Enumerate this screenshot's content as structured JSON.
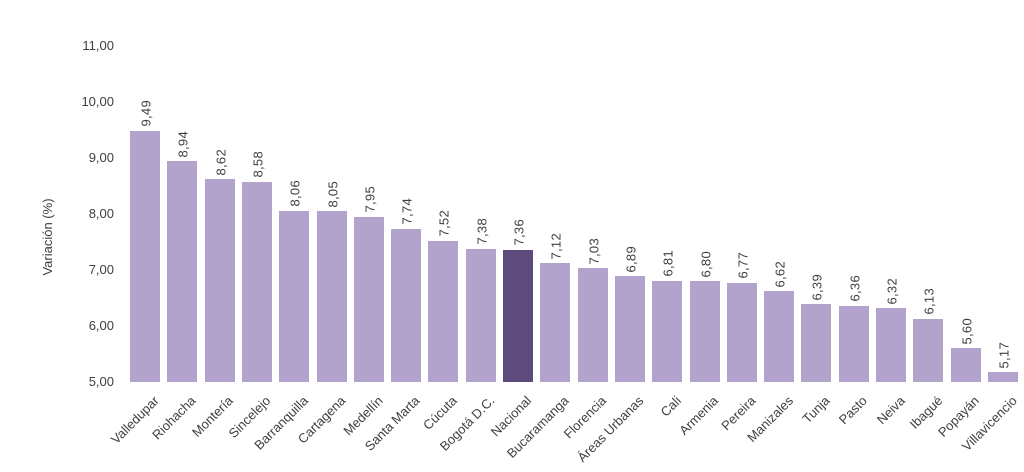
{
  "chart_data": {
    "type": "bar",
    "title": "",
    "xlabel": "",
    "ylabel": "Variación (%)",
    "ylim": [
      5.0,
      11.0
    ],
    "ytick_step": 1.0,
    "ytick_labels": [
      "5,00",
      "6,00",
      "7,00",
      "8,00",
      "9,00",
      "10,00",
      "11,00"
    ],
    "grid": false,
    "legend_position": "none",
    "decimal_separator": ",",
    "categories": [
      "Valledupar",
      "Riohacha",
      "Montería",
      "Sincelejo",
      "Barranquilla",
      "Cartagena",
      "Medellín",
      "Santa Marta",
      "Cúcuta",
      "Bogotá D.C.",
      "Nacional",
      "Bucaramanga",
      "Florencia",
      "Áreas Urbanas",
      "Cali",
      "Armenia",
      "Pereira",
      "Manizales",
      "Tunja",
      "Pasto",
      "Neiva",
      "Ibagué",
      "Popayán",
      "Villavicencio"
    ],
    "values": [
      9.49,
      8.94,
      8.62,
      8.58,
      8.06,
      8.05,
      7.95,
      7.74,
      7.52,
      7.38,
      7.36,
      7.12,
      7.03,
      6.89,
      6.81,
      6.8,
      6.77,
      6.62,
      6.39,
      6.36,
      6.32,
      6.13,
      5.6,
      5.17
    ],
    "value_labels": [
      "9,49",
      "8,94",
      "8,62",
      "8,58",
      "8,06",
      "8,05",
      "7,95",
      "7,74",
      "7,52",
      "7,38",
      "7,36",
      "7,12",
      "7,03",
      "6,89",
      "6,81",
      "6,80",
      "6,77",
      "6,62",
      "6,39",
      "6,36",
      "6,32",
      "6,13",
      "5,60",
      "5,17"
    ],
    "highlight_category": "Nacional",
    "highlight_index": 10,
    "colors": {
      "bar": "#b1a3cb",
      "highlight_bar": "#5d4b7e",
      "text": "#3f3f3f"
    }
  }
}
